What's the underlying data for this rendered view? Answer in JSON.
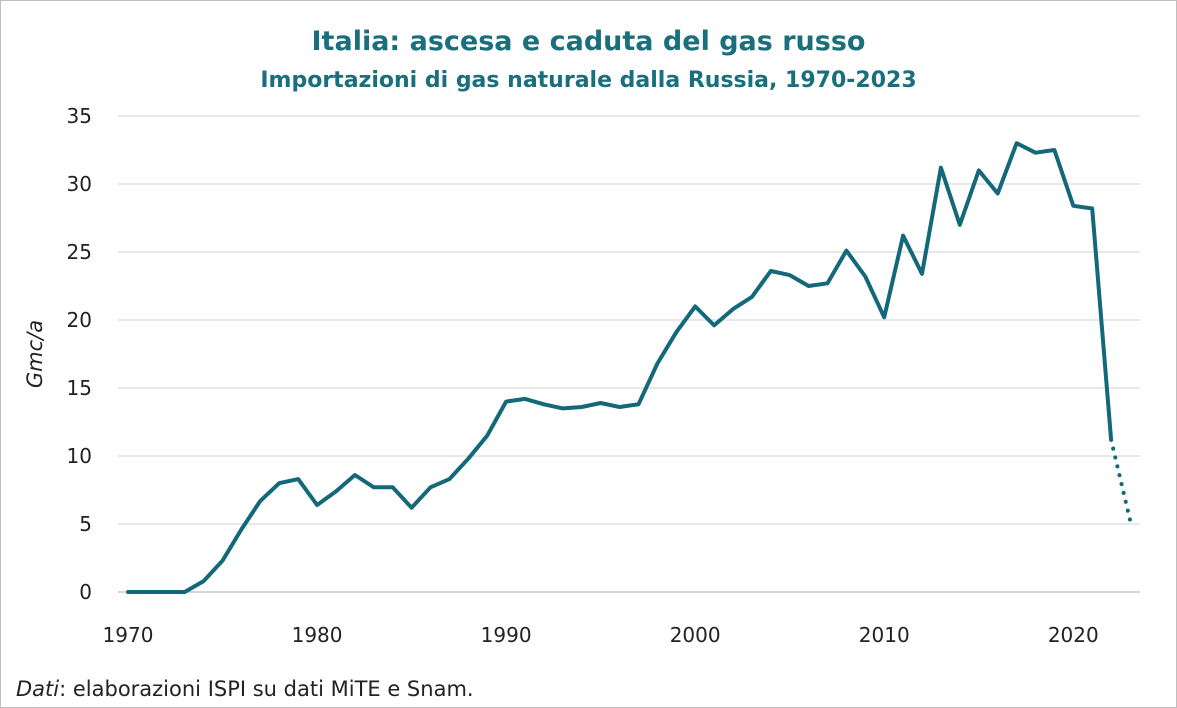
{
  "header": {
    "title": "Italia: ascesa e caduta del gas russo",
    "subtitle": "Importazioni di gas naturale dalla Russia, 1970-2023"
  },
  "footer": {
    "source_label": "Dati",
    "source_text": ": elaborazioni ISPI su dati MiTE e Snam."
  },
  "colors": {
    "line": "#13697a",
    "title": "#1a6f7c",
    "grid": "#d9d9d9"
  },
  "chart_data": {
    "type": "line",
    "title": "Italia: ascesa e caduta del gas russo",
    "subtitle": "Importazioni di gas naturale dalla Russia, 1970-2023",
    "xlabel": "",
    "ylabel": "Gmc/a",
    "xlim": [
      1970,
      2023
    ],
    "ylim": [
      0,
      35
    ],
    "x_ticks": [
      1970,
      1980,
      1990,
      2000,
      2010,
      2020
    ],
    "y_ticks": [
      0,
      5,
      10,
      15,
      20,
      25,
      30,
      35
    ],
    "grid": "horizontal",
    "series": [
      {
        "style": "solid",
        "x": [
          1970,
          1971,
          1972,
          1973,
          1974,
          1975,
          1976,
          1977,
          1978,
          1979,
          1980,
          1981,
          1982,
          1983,
          1984,
          1985,
          1986,
          1987,
          1988,
          1989,
          1990,
          1991,
          1992,
          1993,
          1994,
          1995,
          1996,
          1997,
          1998,
          1999,
          2000,
          2001,
          2002,
          2003,
          2004,
          2005,
          2006,
          2007,
          2008,
          2009,
          2010,
          2011,
          2012,
          2013,
          2014,
          2015,
          2016,
          2017,
          2018,
          2019,
          2020,
          2021,
          2022
        ],
        "y": [
          0,
          0,
          0,
          0,
          0.8,
          2.3,
          4.6,
          6.7,
          8.0,
          8.3,
          6.4,
          7.4,
          8.6,
          7.7,
          7.7,
          6.2,
          7.7,
          8.3,
          9.8,
          11.5,
          14.0,
          14.2,
          13.8,
          13.5,
          13.6,
          13.9,
          13.6,
          13.8,
          16.8,
          19.1,
          21.0,
          19.6,
          20.8,
          21.7,
          23.6,
          23.3,
          22.5,
          22.7,
          25.1,
          23.2,
          20.2,
          26.2,
          23.4,
          31.2,
          27.0,
          31.0,
          29.3,
          33.0,
          32.3,
          32.5,
          28.4,
          28.2,
          11.2
        ]
      },
      {
        "style": "dotted",
        "x": [
          2022,
          2023
        ],
        "y": [
          11.2,
          5.3
        ]
      }
    ]
  }
}
